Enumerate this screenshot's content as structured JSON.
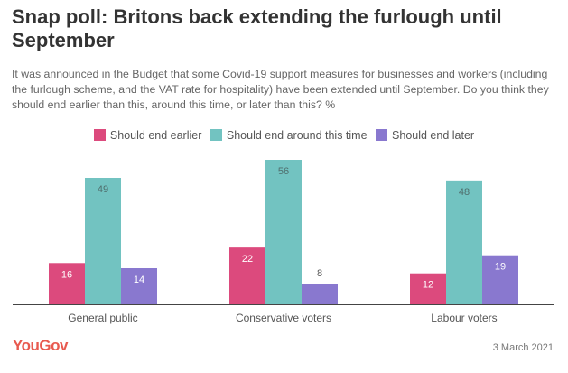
{
  "chart_data": {
    "type": "bar",
    "title": "Snap poll: Britons back extending the furlough until September",
    "subtitle": "It was announced in the Budget that some Covid-19 support measures for businesses and workers (including the furlough scheme, and the VAT rate for hospitality) have been extended until September. Do you think they should end earlier than this, around this time, or later than this? %",
    "categories": [
      "General public",
      "Conservative voters",
      "Labour voters"
    ],
    "series": [
      {
        "name": "Should end earlier",
        "color": "#dc4a7d",
        "values": [
          16,
          22,
          12
        ]
      },
      {
        "name": "Should end around this time",
        "color": "#72c3c1",
        "values": [
          49,
          56,
          48
        ]
      },
      {
        "name": "Should end later",
        "color": "#8978cf",
        "values": [
          14,
          8,
          19
        ]
      }
    ],
    "xlabel": "",
    "ylabel": "",
    "ylim": [
      0,
      56
    ],
    "grid": false,
    "legend_position": "top-center"
  },
  "footer": {
    "logo": "YouGov",
    "date": "3 March 2021"
  }
}
